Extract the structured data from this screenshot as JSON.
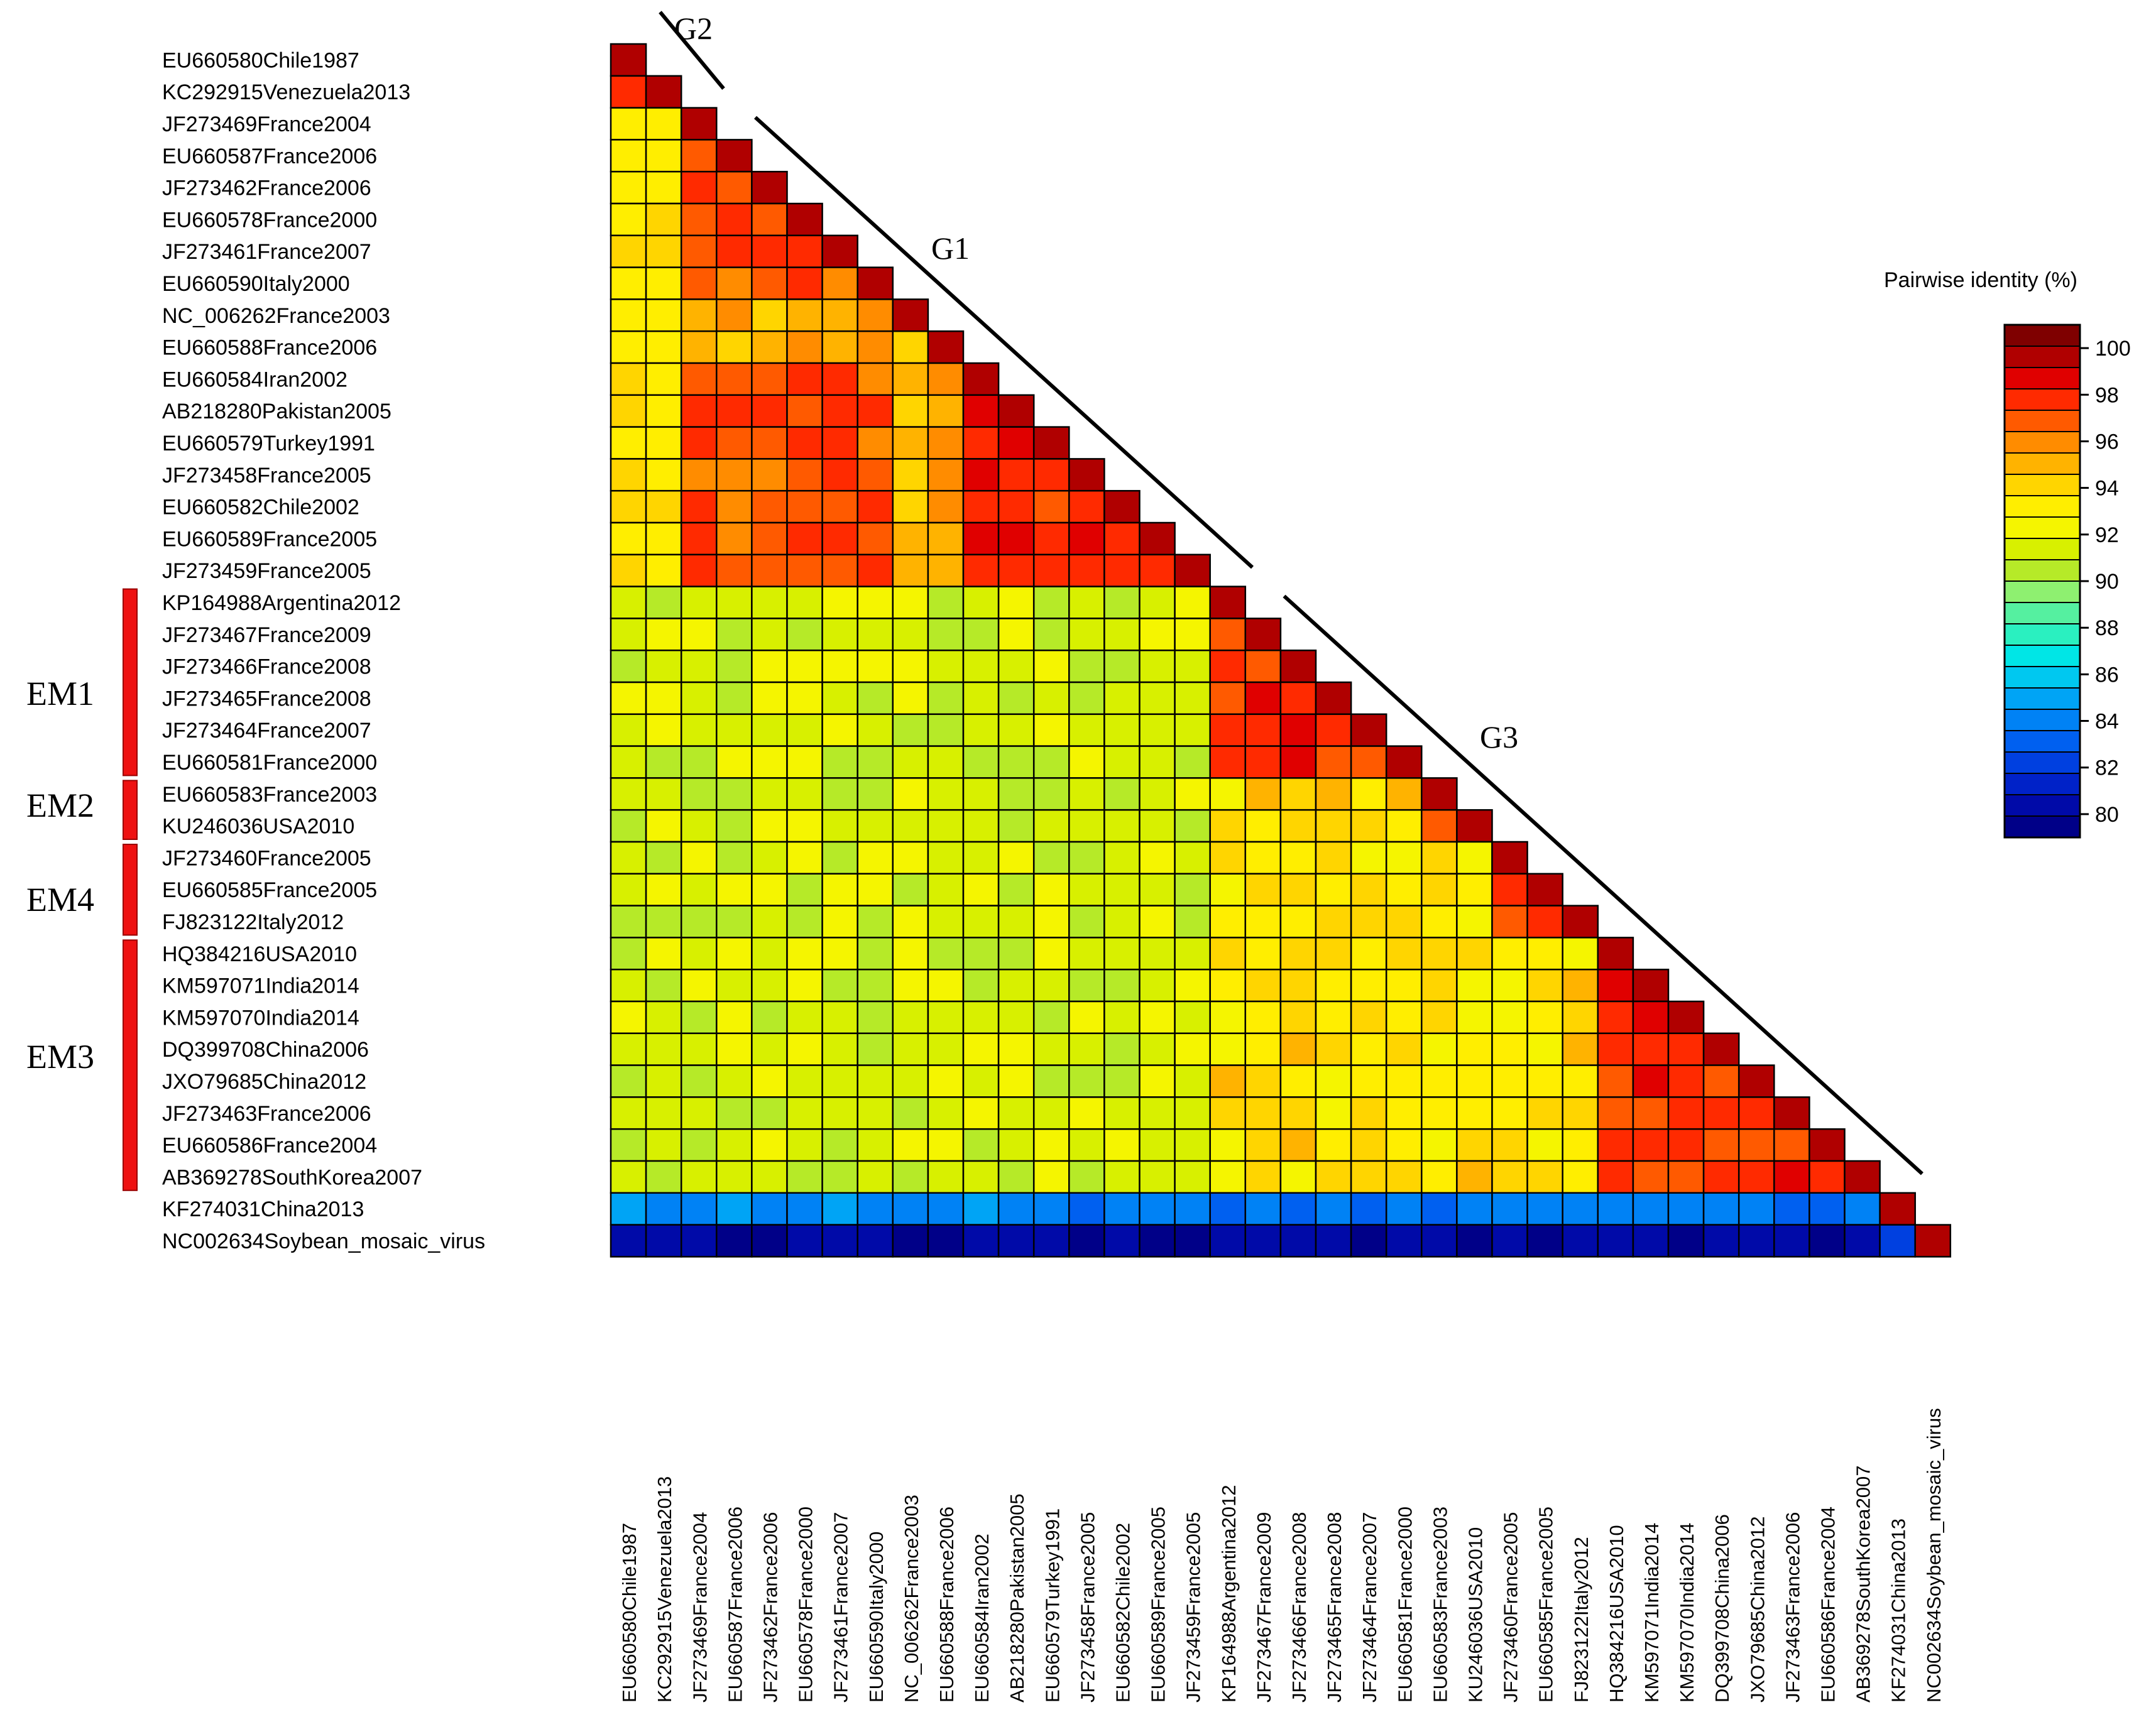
{
  "chart_data": {
    "type": "heatmap",
    "layout": "lower-triangular",
    "legend": {
      "title": "Pairwise identity (%)",
      "range": [
        79,
        101
      ],
      "ticks": [
        100,
        98,
        96,
        94,
        92,
        90,
        88,
        86,
        84,
        82,
        80
      ],
      "colors": [
        "#7f0000",
        "#b00000",
        "#e00000",
        "#ff2a00",
        "#ff5a00",
        "#ff8c00",
        "#ffb300",
        "#ffd500",
        "#ffee00",
        "#f5f500",
        "#d8f000",
        "#b6ea28",
        "#8ef070",
        "#55f0a0",
        "#2af0c0",
        "#00e6e6",
        "#00c8f0",
        "#00a4f5",
        "#0082f5",
        "#0060f0",
        "#0040e0",
        "#0022c8",
        "#000aa8",
        "#000088"
      ],
      "placement": "right"
    },
    "sequences": [
      "EU660580Chile1987",
      "KC292915Venezuela2013",
      "JF273469France2004",
      "EU660587France2006",
      "JF273462France2006",
      "EU660578France2000",
      "JF273461France2007",
      "EU660590Italy2000",
      "NC_006262France2003",
      "EU660588France2006",
      "EU660584Iran2002",
      "AB218280Pakistan2005",
      "EU660579Turkey1991",
      "JF273458France2005",
      "EU660582Chile2002",
      "EU660589France2005",
      "JF273459France2005",
      "KP164988Argentina2012",
      "JF273467France2009",
      "JF273466France2008",
      "JF273465France2008",
      "JF273464France2007",
      "EU660581France2000",
      "EU660583France2003",
      "KU246036USA2010",
      "JF273460France2005",
      "EU660585France2005",
      "FJ823122Italy2012",
      "HQ384216USA2010",
      "KM597071India2014",
      "KM597070India2014",
      "DQ399708China2006",
      "JXO79685China2012",
      "JF273463France2006",
      "EU660586France2004",
      "AB369278SouthKorea2007",
      "KF274031China2013",
      "NC002634Soybean_mosaic_virus"
    ],
    "groups": [
      {
        "name": "G2",
        "members": [
          0,
          1
        ]
      },
      {
        "name": "G1",
        "members": [
          2,
          16
        ]
      },
      {
        "name": "G3",
        "members": [
          17,
          35
        ]
      }
    ],
    "clusters": [
      {
        "name": "EM1",
        "members": [
          17,
          22
        ]
      },
      {
        "name": "EM2",
        "members": [
          23,
          24
        ]
      },
      {
        "name": "EM4",
        "members": [
          25,
          27
        ]
      },
      {
        "name": "EM3",
        "members": [
          28,
          35
        ]
      }
    ],
    "identity_estimates": {
      "group_levels": [
        {
          "groups": [
            "G1",
            "G1"
          ],
          "value": 97.5
        },
        {
          "groups": [
            "G2",
            "G2"
          ],
          "value": 98
        },
        {
          "groups": [
            "G1",
            "G2"
          ],
          "value": 93.5
        },
        {
          "groups": [
            "G3",
            "G3"
          ],
          "value": 94
        },
        {
          "groups": [
            "G3",
            "G1"
          ],
          "value": 91.5
        },
        {
          "groups": [
            "G3",
            "G2"
          ],
          "value": 91.5
        },
        {
          "groups": [
            "KF274031",
            "others"
          ],
          "value": 84
        },
        {
          "groups": [
            "NC002634",
            "others"
          ],
          "value": 80
        },
        {
          "groups": [
            "NC002634",
            "KF274031"
          ],
          "value": 82.5
        },
        {
          "groups": [
            "diagonal"
          ],
          "value": 100
        }
      ]
    }
  }
}
